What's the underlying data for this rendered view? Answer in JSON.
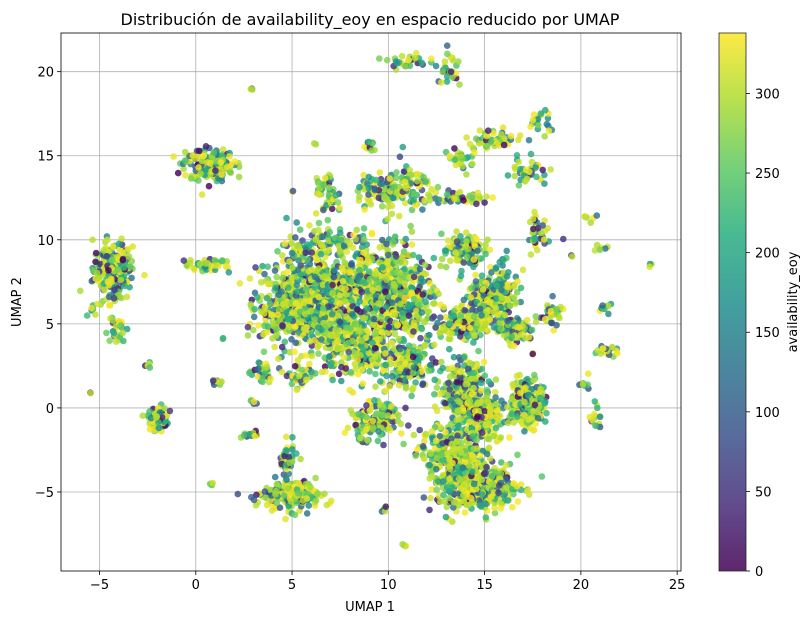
{
  "chart_data": {
    "type": "scatter",
    "title": "Distribución de availability_eoy en espacio reducido por UMAP",
    "xlabel": "UMAP 1",
    "ylabel": "UMAP 2",
    "xlim": [
      -7.0,
      25.2
    ],
    "ylim": [
      -9.7,
      22.3
    ],
    "xticks": [
      -5,
      0,
      5,
      10,
      15,
      20,
      25
    ],
    "yticks": [
      -5,
      0,
      5,
      10,
      15,
      20
    ],
    "xtick_labels": [
      "−5",
      "0",
      "5",
      "10",
      "15",
      "20",
      "25"
    ],
    "ytick_labels": [
      "−5",
      "0",
      "5",
      "10",
      "15",
      "20"
    ],
    "grid": true,
    "colorbar": {
      "label": "availability_eoy",
      "min": 0,
      "max": 338,
      "ticks": [
        0,
        50,
        100,
        150,
        200,
        250,
        300
      ],
      "colormap": "viridis"
    },
    "clusters": [
      {
        "x": -4.3,
        "y": 8.2,
        "sx": 0.5,
        "sy": 0.8,
        "n": 260
      },
      {
        "x": -4.2,
        "y": 4.6,
        "sx": 0.3,
        "sy": 0.4,
        "n": 30
      },
      {
        "x": -5.3,
        "y": 6.0,
        "sx": 0.15,
        "sy": 0.2,
        "n": 8
      },
      {
        "x": 0.7,
        "y": 14.5,
        "sx": 0.65,
        "sy": 0.45,
        "n": 220
      },
      {
        "x": 0.6,
        "y": 8.5,
        "sx": 0.55,
        "sy": 0.2,
        "n": 50
      },
      {
        "x": -2.0,
        "y": -0.6,
        "sx": 0.25,
        "sy": 0.35,
        "n": 90
      },
      {
        "x": 5.0,
        "y": -5.2,
        "sx": 0.75,
        "sy": 0.45,
        "n": 200
      },
      {
        "x": 4.8,
        "y": -3.2,
        "sx": 0.25,
        "sy": 0.5,
        "n": 40
      },
      {
        "x": 5.0,
        "y": 6.0,
        "sx": 0.9,
        "sy": 1.1,
        "n": 450
      },
      {
        "x": 6.6,
        "y": 6.5,
        "sx": 0.7,
        "sy": 1.6,
        "n": 320
      },
      {
        "x": 8.3,
        "y": 4.0,
        "sx": 0.9,
        "sy": 1.0,
        "n": 300
      },
      {
        "x": 8.3,
        "y": 7.5,
        "sx": 0.7,
        "sy": 0.8,
        "n": 200
      },
      {
        "x": 10.0,
        "y": 7.0,
        "sx": 0.6,
        "sy": 1.6,
        "n": 300
      },
      {
        "x": 11.3,
        "y": 6.5,
        "sx": 0.6,
        "sy": 1.3,
        "n": 200
      },
      {
        "x": 9.2,
        "y": -0.8,
        "sx": 0.7,
        "sy": 0.6,
        "n": 150
      },
      {
        "x": 11.0,
        "y": 2.5,
        "sx": 0.7,
        "sy": 0.7,
        "n": 150
      },
      {
        "x": 13.5,
        "y": -3.2,
        "sx": 0.9,
        "sy": 1.2,
        "n": 400
      },
      {
        "x": 15.0,
        "y": -4.8,
        "sx": 0.9,
        "sy": 0.6,
        "n": 320
      },
      {
        "x": 13.8,
        "y": 1.2,
        "sx": 0.6,
        "sy": 0.8,
        "n": 250
      },
      {
        "x": 14.9,
        "y": -0.4,
        "sx": 0.6,
        "sy": 0.6,
        "n": 200
      },
      {
        "x": 17.2,
        "y": 0.3,
        "sx": 0.45,
        "sy": 0.7,
        "n": 260
      },
      {
        "x": 15.0,
        "y": 6.2,
        "sx": 0.5,
        "sy": 0.9,
        "n": 180
      },
      {
        "x": 16.5,
        "y": 4.7,
        "sx": 0.45,
        "sy": 0.3,
        "n": 120
      },
      {
        "x": 16.0,
        "y": 7.0,
        "sx": 0.4,
        "sy": 0.7,
        "n": 100
      },
      {
        "x": 13.8,
        "y": 5.0,
        "sx": 0.6,
        "sy": 0.5,
        "n": 130
      },
      {
        "x": 14.0,
        "y": 9.3,
        "sx": 0.6,
        "sy": 0.5,
        "n": 120
      },
      {
        "x": 13.5,
        "y": 12.5,
        "sx": 0.8,
        "sy": 0.2,
        "n": 50
      },
      {
        "x": 15.5,
        "y": 16.0,
        "sx": 0.7,
        "sy": 0.3,
        "n": 60
      },
      {
        "x": 13.8,
        "y": 14.8,
        "sx": 0.4,
        "sy": 0.3,
        "n": 30
      },
      {
        "x": 11.0,
        "y": 20.6,
        "sx": 0.5,
        "sy": 0.2,
        "n": 30
      },
      {
        "x": 13.2,
        "y": 20.0,
        "sx": 0.3,
        "sy": 0.6,
        "n": 30
      },
      {
        "x": 9.6,
        "y": 12.8,
        "sx": 0.6,
        "sy": 0.5,
        "n": 80
      },
      {
        "x": 11.0,
        "y": 13.2,
        "sx": 0.6,
        "sy": 0.7,
        "n": 80
      },
      {
        "x": 9.0,
        "y": 15.6,
        "sx": 0.2,
        "sy": 0.2,
        "n": 15
      },
      {
        "x": 6.8,
        "y": 12.5,
        "sx": 0.3,
        "sy": 0.9,
        "n": 50
      },
      {
        "x": 5.5,
        "y": 9.5,
        "sx": 0.5,
        "sy": 0.6,
        "n": 60
      },
      {
        "x": 7.5,
        "y": 10.0,
        "sx": 0.7,
        "sy": 0.3,
        "n": 50
      },
      {
        "x": 3.5,
        "y": 2.0,
        "sx": 0.3,
        "sy": 0.4,
        "n": 30
      },
      {
        "x": 5.5,
        "y": 1.8,
        "sx": 0.5,
        "sy": 0.4,
        "n": 40
      },
      {
        "x": 2.8,
        "y": -1.6,
        "sx": 0.3,
        "sy": 0.1,
        "n": 15
      },
      {
        "x": 1.0,
        "y": 1.5,
        "sx": 0.2,
        "sy": 0.1,
        "n": 10
      },
      {
        "x": 17.8,
        "y": 10.5,
        "sx": 0.3,
        "sy": 0.5,
        "n": 40
      },
      {
        "x": 18.5,
        "y": 5.6,
        "sx": 0.3,
        "sy": 0.4,
        "n": 40
      },
      {
        "x": 17.3,
        "y": 14.0,
        "sx": 0.6,
        "sy": 0.4,
        "n": 40
      },
      {
        "x": 17.8,
        "y": 17.0,
        "sx": 0.3,
        "sy": 0.4,
        "n": 20
      },
      {
        "x": 21.3,
        "y": 3.4,
        "sx": 0.3,
        "sy": 0.2,
        "n": 20
      },
      {
        "x": 20.8,
        "y": -0.6,
        "sx": 0.15,
        "sy": 0.4,
        "n": 15
      },
      {
        "x": 21.3,
        "y": 6.0,
        "sx": 0.2,
        "sy": 0.2,
        "n": 10
      },
      {
        "x": 21.0,
        "y": 9.5,
        "sx": 0.15,
        "sy": 0.15,
        "n": 6
      },
      {
        "x": 20.5,
        "y": 11.2,
        "sx": 0.15,
        "sy": 0.2,
        "n": 6
      },
      {
        "x": 23.6,
        "y": 8.5,
        "sx": 0.05,
        "sy": 0.05,
        "n": 3
      },
      {
        "x": 9.8,
        "y": -6.1,
        "sx": 0.1,
        "sy": 0.1,
        "n": 5
      },
      {
        "x": 10.8,
        "y": -8.2,
        "sx": 0.1,
        "sy": 0.1,
        "n": 4
      },
      {
        "x": 2.9,
        "y": 19.0,
        "sx": 0.05,
        "sy": 0.05,
        "n": 3
      },
      {
        "x": -5.5,
        "y": 0.8,
        "sx": 0.05,
        "sy": 0.05,
        "n": 2
      },
      {
        "x": 13.1,
        "y": -6.5,
        "sx": 0.05,
        "sy": 0.05,
        "n": 2
      },
      {
        "x": 0.9,
        "y": -4.6,
        "sx": 0.1,
        "sy": 0.1,
        "n": 4
      },
      {
        "x": -2.5,
        "y": 2.6,
        "sx": 0.1,
        "sy": 0.1,
        "n": 5
      },
      {
        "x": 5.0,
        "y": 12.8,
        "sx": 0.05,
        "sy": 0.05,
        "n": 2
      },
      {
        "x": 6.2,
        "y": 15.7,
        "sx": 0.05,
        "sy": 0.05,
        "n": 2
      },
      {
        "x": 20.2,
        "y": 1.5,
        "sx": 0.2,
        "sy": 0.3,
        "n": 8
      },
      {
        "x": 19.5,
        "y": 9.1,
        "sx": 0.05,
        "sy": 0.05,
        "n": 2
      },
      {
        "x": 17.5,
        "y": 3.2,
        "sx": 0.05,
        "sy": 0.05,
        "n": 2
      },
      {
        "x": 1.4,
        "y": 4.2,
        "sx": 0.05,
        "sy": 0.05,
        "n": 2
      },
      {
        "x": 3.0,
        "y": 0.4,
        "sx": 0.1,
        "sy": 0.1,
        "n": 5
      }
    ]
  }
}
